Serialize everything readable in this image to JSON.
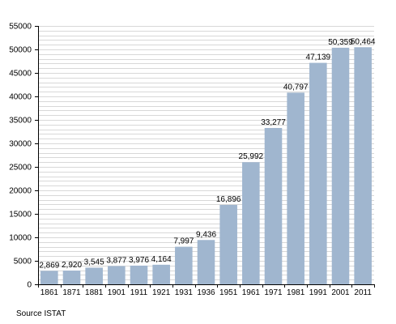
{
  "chart_data": {
    "type": "bar",
    "categories": [
      "1861",
      "1871",
      "1881",
      "1901",
      "1911",
      "1921",
      "1931",
      "1936",
      "1951",
      "1961",
      "1971",
      "1981",
      "1991",
      "2001",
      "2011"
    ],
    "values": [
      2869,
      2920,
      3545,
      3877,
      3976,
      4164,
      7997,
      9436,
      16896,
      25992,
      33277,
      40797,
      47139,
      50359,
      50464
    ],
    "value_labels": [
      "2,869",
      "2,920",
      "3,545",
      "3,877",
      "3,976",
      "4,164",
      "7,997",
      "9,436",
      "16,896",
      "25,992",
      "33,277",
      "40,797",
      "47,139",
      "50,359",
      "50,464"
    ],
    "y_ticks": [
      "0",
      "5000",
      "10000",
      "15000",
      "20000",
      "25000",
      "30000",
      "35000",
      "40000",
      "45000",
      "50000",
      "55000"
    ],
    "ylim": [
      0,
      55000
    ],
    "grid": true,
    "bar_color": "#a0b6cf",
    "grid_color": "#d8d8d8",
    "source": "Source ISTAT"
  }
}
